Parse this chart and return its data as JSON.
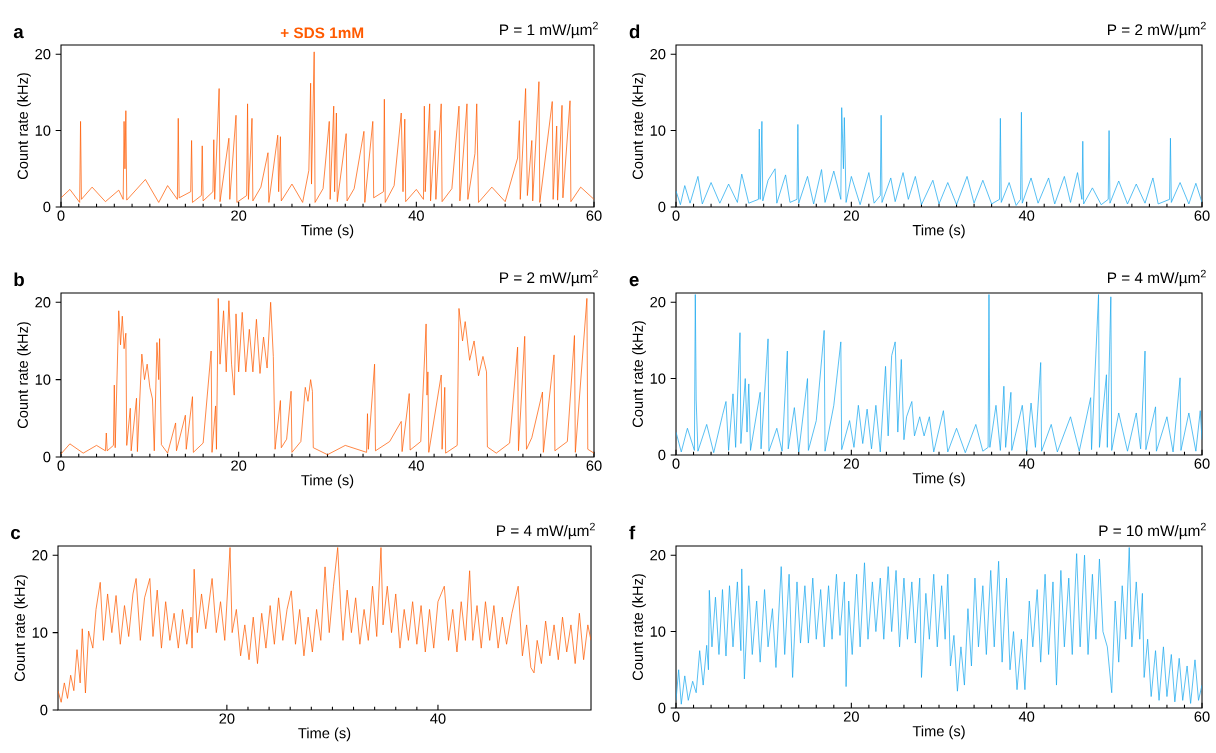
{
  "chart_data": [
    {
      "type": "line",
      "title": "+ SDS 1mM",
      "subtitle": "P = 1 mW/µm$^{2}$",
      "xlabel": "Time (s)",
      "ylabel": "Count rate (kHz)",
      "annotations": [
        "a"
      ],
      "color": "#ff5a00",
      "xlim": [
        0,
        60
      ],
      "ylim": [
        0,
        21.2
      ],
      "xticks": [
        0,
        20,
        40,
        60
      ],
      "yticks": [
        0,
        10,
        20
      ],
      "x": [
        0,
        1,
        2.1,
        2.2,
        2.3,
        3.5,
        5,
        6.5,
        7.0,
        7.1,
        7.2,
        7.3,
        7.4,
        9.5,
        11,
        12,
        13.1,
        13.2,
        13.3,
        14.6,
        14.7,
        14.8,
        15.8,
        15.9,
        16.0,
        17.1,
        17.2,
        17.3,
        17.8,
        17.9,
        18.9,
        19.0,
        19.7,
        19.8,
        20.9,
        21.0,
        21.1,
        21.5,
        21.6,
        22.5,
        23.3,
        23.4,
        24.4,
        24.5,
        24.7,
        24.8,
        26,
        27.2,
        27.9,
        28.1,
        28.2,
        28.5,
        28.6,
        29.5,
        30.2,
        30.3,
        30.7,
        30.8,
        31.0,
        31.1,
        32.1,
        32.2,
        33,
        34.1,
        34.2,
        35.1,
        35.2,
        36.3,
        36.4,
        36.5,
        37.5,
        38.3,
        38.5,
        38.7,
        38.8,
        40,
        40.8,
        40.9,
        41.0,
        41.5,
        41.6,
        42.1,
        42.2,
        42.8,
        42.9,
        44,
        44.8,
        44.9,
        45.7,
        45.8,
        46.6,
        46.8,
        47.0,
        48.5,
        50,
        51.4,
        51.6,
        51.7,
        52.3,
        52.5,
        53.0,
        53.1,
        53.8,
        53.9,
        55.3,
        55.4,
        55.8,
        55.9,
        56.4,
        56.5,
        57.3,
        57.4,
        58.5,
        60
      ],
      "values": [
        1.2,
        2.3,
        0.6,
        11.2,
        1.0,
        2.6,
        0.7,
        2.2,
        1.0,
        11.2,
        5,
        12.6,
        0.9,
        3.6,
        0.6,
        2.8,
        1.0,
        11.6,
        1.2,
        2.0,
        8.7,
        0.6,
        1.5,
        8.0,
        0.8,
        2.0,
        8.8,
        1.0,
        15.5,
        0.7,
        9.0,
        1.0,
        12.0,
        0.6,
        1.5,
        13.5,
        1.0,
        11.6,
        0.8,
        2.6,
        7.1,
        0.6,
        9.4,
        2.0,
        9.2,
        0.8,
        3.0,
        0.6,
        4.8,
        16.2,
        3,
        20.3,
        0.6,
        2.4,
        11.2,
        1.0,
        13.2,
        2.0,
        12.3,
        0.7,
        9.6,
        0.8,
        2.4,
        9.9,
        0.6,
        11.2,
        1.2,
        2.0,
        14.1,
        0.6,
        2.8,
        12.3,
        2.0,
        11.5,
        0.7,
        2.3,
        1.0,
        13.2,
        2,
        13.5,
        0.8,
        10.0,
        1.0,
        13.5,
        0.7,
        2.4,
        13.2,
        0.8,
        13.5,
        1.0,
        7.0,
        13.5,
        0.6,
        2.6,
        0.7,
        6.4,
        11.3,
        1.0,
        15.5,
        1.5,
        8.7,
        0.8,
        16.4,
        0.6,
        13.8,
        1.0,
        10.6,
        0.9,
        13.3,
        1.2,
        13.9,
        0.7,
        2.6,
        1.0
      ]
    },
    {
      "type": "line",
      "subtitle": "P = 2 mW/µm$^{2}$",
      "xlabel": "Time (s)",
      "ylabel": "Count rate (kHz)",
      "annotations": [
        "b"
      ],
      "color": "#ff5a00",
      "xlim": [
        0,
        60
      ],
      "ylim": [
        0,
        21.2
      ],
      "xticks": [
        0,
        20,
        40,
        60
      ],
      "yticks": [
        0,
        10,
        20
      ],
      "x": [
        0,
        1,
        2.5,
        4,
        5.0,
        5.1,
        5.2,
        5.9,
        6.0,
        6.1,
        6.5,
        6.7,
        6.9,
        7.1,
        7.3,
        7.4,
        7.8,
        7.9,
        8.5,
        8.6,
        9.1,
        9.4,
        9.7,
        10.0,
        10.3,
        10.5,
        10.8,
        11.0,
        11.1,
        11.3,
        12,
        12.9,
        13,
        14,
        14.1,
        14.8,
        14.9,
        16,
        16.9,
        17.0,
        17.4,
        17.5,
        17.7,
        17.9,
        18.3,
        18.6,
        18.9,
        19.2,
        19.5,
        19.7,
        20,
        20.4,
        20.8,
        21.2,
        21.6,
        22,
        22.4,
        22.8,
        23.2,
        23.6,
        23.9,
        24.1,
        24.7,
        24.8,
        25.4,
        25.9,
        26.0,
        27.0,
        27.5,
        27.8,
        28.1,
        28.3,
        28.4,
        30,
        32,
        34.4,
        34.5,
        34.6,
        35.3,
        35.4,
        37,
        38.3,
        38.4,
        39.2,
        39.3,
        40.5,
        41.1,
        41.2,
        41.3,
        41.4,
        42.8,
        42.9,
        43.2,
        43.3,
        44.6,
        44.8,
        45.2,
        45.5,
        46,
        46.5,
        47,
        47.5,
        47.9,
        48.0,
        49,
        50.5,
        51.4,
        51.5,
        52.2,
        52.4,
        53,
        54.2,
        54.3,
        55.5,
        55.6,
        57,
        57.8,
        57.9,
        59.2,
        59.3,
        60
      ],
      "values": [
        0.4,
        1.7,
        0.5,
        1.5,
        0.8,
        3.1,
        0.8,
        1.5,
        9.3,
        1.2,
        18.9,
        14.5,
        18.2,
        14,
        16,
        1.5,
        6.3,
        0.8,
        7.6,
        0.7,
        13.3,
        10,
        12,
        9,
        7.5,
        0.8,
        14.8,
        10,
        15.3,
        1.6,
        0.5,
        4.4,
        0.8,
        5.4,
        1.0,
        7.8,
        0.6,
        1.8,
        13.7,
        0.6,
        6.6,
        1.0,
        20.5,
        12,
        18.9,
        11,
        20.2,
        12,
        8,
        18.5,
        11,
        18.7,
        11,
        16.5,
        11,
        17.8,
        10.8,
        15.5,
        11.5,
        20.0,
        13,
        1.0,
        7.3,
        1.2,
        2.3,
        8.5,
        0.6,
        2.0,
        9.0,
        7.2,
        10.0,
        8.5,
        1.2,
        0.3,
        1.5,
        0.6,
        5.6,
        1.0,
        12.0,
        0.8,
        2.0,
        4.6,
        0.7,
        8.2,
        0.9,
        2.0,
        17.2,
        8,
        11.0,
        0.6,
        10.6,
        1.0,
        9.0,
        0.5,
        1.5,
        19.2,
        15,
        17.5,
        12.5,
        15,
        10.5,
        13,
        11,
        1.3,
        0.5,
        1.8,
        14.2,
        0.8,
        15.6,
        1.0,
        2.5,
        8.4,
        0.6,
        13.2,
        0.8,
        2.0,
        15.7,
        0.6,
        20.5,
        1.0,
        0.5
      ]
    },
    {
      "type": "line",
      "subtitle": "P = 4 mW/µm$^{2}$",
      "xlabel": "Time (s)",
      "ylabel": "Count rate (kHz)",
      "annotations": [
        "c"
      ],
      "color": "#ff5a00",
      "xlim": [
        4,
        54.5
      ],
      "ylim": [
        0,
        21.2
      ],
      "xticks": [
        20,
        40
      ],
      "yticks": [
        0,
        10,
        20
      ],
      "x": [
        4,
        4.3,
        4.6,
        4.9,
        5.2,
        5.5,
        5.8,
        6.1,
        6.3,
        6.6,
        6.9,
        7.3,
        7.6,
        8.0,
        8.3,
        8.7,
        9.1,
        9.5,
        9.9,
        10.3,
        10.7,
        11.1,
        11.4,
        11.8,
        12.2,
        12.7,
        13,
        13.4,
        13.8,
        14.2,
        14.6,
        15,
        15.4,
        15.8,
        16.2,
        16.6,
        16.7,
        16.9,
        17.2,
        17.6,
        18,
        18.6,
        19,
        19.4,
        19.8,
        20.3,
        20.5,
        20.9,
        21.3,
        21.7,
        22.1,
        22.5,
        22.9,
        23.3,
        23.7,
        24.1,
        24.5,
        24.9,
        25.3,
        25.7,
        26.1,
        26.5,
        26.9,
        27.3,
        27.7,
        28.1,
        28.5,
        28.9,
        29.3,
        29.7,
        30.1,
        30.5,
        30.8,
        31,
        31.4,
        31.8,
        32.2,
        32.6,
        33,
        33.4,
        33.8,
        34.2,
        34.6,
        34.8,
        35.2,
        35.6,
        36,
        36.4,
        36.8,
        37.2,
        37.6,
        38,
        38.4,
        38.8,
        39.2,
        39.6,
        40,
        40.6,
        41,
        41.4,
        41.8,
        42.2,
        42.6,
        43.0,
        43.3,
        43.7,
        44.1,
        44.5,
        44.9,
        45.3,
        45.7,
        46.1,
        46.5,
        47,
        47.6,
        48,
        48.4,
        48.8,
        49.1,
        49.4,
        49.8,
        50.2,
        50.6,
        51,
        51.4,
        51.8,
        52.2,
        52.6,
        53,
        53.4,
        53.8,
        54.2,
        54.5
      ],
      "values": [
        2.5,
        1.0,
        3.5,
        1.5,
        4.5,
        2.5,
        7.8,
        3.5,
        10.5,
        2.2,
        10.2,
        8,
        13,
        16.5,
        9,
        15,
        10,
        14.8,
        8.5,
        13.5,
        9.5,
        15,
        17,
        9,
        14.5,
        17,
        9.5,
        15.5,
        8,
        14,
        9,
        12.5,
        8,
        13,
        8.5,
        12,
        8,
        18.2,
        10,
        15,
        10.5,
        17,
        10,
        14,
        9,
        21,
        10,
        13,
        7,
        11,
        6.5,
        12,
        6,
        12.5,
        8,
        13.5,
        8.5,
        14.5,
        9,
        13,
        15.4,
        8.5,
        13,
        7,
        12,
        7.5,
        13,
        9,
        18.5,
        10,
        16,
        21,
        13,
        9,
        15.5,
        10,
        14.5,
        8.5,
        13,
        9,
        16,
        9.5,
        21,
        11,
        16,
        10,
        15,
        8,
        13,
        9,
        14,
        8.5,
        13.5,
        7.5,
        13,
        8,
        14,
        16,
        9,
        13,
        7.5,
        14,
        9,
        18,
        9,
        13.5,
        8,
        14,
        9,
        13.5,
        8,
        12,
        8.5,
        12.5,
        16,
        7,
        11,
        5.5,
        4.8,
        9,
        6,
        11.5,
        7,
        11,
        6.5,
        12,
        7.5,
        11,
        6,
        12.5,
        6.5,
        11,
        9
      ]
    },
    {
      "type": "line",
      "subtitle": "P = 2 mW/µm$^{2}$",
      "xlabel": "Time (s)",
      "ylabel": "Count rate (kHz)",
      "annotations": [
        "d"
      ],
      "color": "#1ca8ee",
      "xlim": [
        0,
        60
      ],
      "ylim": [
        0,
        21.2
      ],
      "xticks": [
        0,
        20,
        40,
        60
      ],
      "yticks": [
        0,
        10,
        20
      ],
      "x": [
        0,
        0.5,
        1,
        1.6,
        2.5,
        3,
        4,
        5,
        6,
        7,
        7.5,
        8.3,
        9.4,
        9.5,
        9.6,
        9.8,
        9.9,
        10.5,
        11.3,
        11.5,
        12.5,
        13,
        13.8,
        13.9,
        14.0,
        15,
        15.7,
        16.6,
        17,
        18,
        18.8,
        18.9,
        19.1,
        19.2,
        19.4,
        20,
        21,
        22,
        22.6,
        23.3,
        23.4,
        23.5,
        24.5,
        25,
        25.9,
        26.5,
        27.3,
        28,
        29.3,
        30,
        31,
        32,
        33.2,
        34,
        35,
        36,
        36.9,
        37.0,
        37.1,
        38,
        38.8,
        39.3,
        39.4,
        39.5,
        40.5,
        41.3,
        42.5,
        43.2,
        44.3,
        45,
        45.8,
        46.3,
        46.4,
        46.5,
        47.5,
        48.5,
        49.3,
        49.4,
        49.5,
        50.5,
        51.5,
        52.5,
        53.5,
        54.4,
        55,
        56.3,
        56.4,
        56.5,
        57.5,
        58.5,
        59.3,
        60
      ],
      "values": [
        2.1,
        0.3,
        2.8,
        0.5,
        4.0,
        0.4,
        3.2,
        0.5,
        3.0,
        0.6,
        4.3,
        0.5,
        1.0,
        10.2,
        1.0,
        11.2,
        0.8,
        3.5,
        5.0,
        0.5,
        4.2,
        0.6,
        1.0,
        10.8,
        0.5,
        4.0,
        0.4,
        4.9,
        0.6,
        4.7,
        1.0,
        13.0,
        5,
        11.7,
        0.6,
        4.0,
        0.3,
        4.5,
        0.5,
        1.5,
        12.0,
        0.6,
        3.8,
        0.7,
        4.5,
        1.0,
        4.0,
        0.3,
        3.5,
        0.4,
        3.2,
        0.3,
        4.0,
        0.5,
        3.5,
        0.4,
        1.0,
        11.6,
        0.6,
        3.2,
        0.2,
        1.0,
        12.4,
        0.5,
        3.8,
        0.5,
        3.8,
        0.4,
        4.0,
        0.6,
        4.5,
        1.0,
        8.6,
        0.4,
        2.5,
        0.3,
        1.0,
        10.0,
        0.5,
        3.4,
        0.4,
        3.0,
        0.5,
        3.8,
        0.4,
        1.0,
        9.0,
        0.6,
        3.2,
        0.4,
        3.1,
        0.6
      ]
    },
    {
      "type": "line",
      "subtitle": "P = 4 mW/µm$^{2}$",
      "xlabel": "Time (s)",
      "ylabel": "Count rate (kHz)",
      "annotations": [
        "e"
      ],
      "color": "#1ca8ee",
      "xlim": [
        0,
        60
      ],
      "ylim": [
        0,
        21.2
      ],
      "xticks": [
        0,
        20,
        40,
        60
      ],
      "yticks": [
        0,
        10,
        20
      ],
      "x": [
        0,
        0.6,
        1.3,
        2.1,
        2.2,
        2.3,
        2.5,
        3.5,
        4.3,
        5.3,
        5.7,
        6.0,
        6.5,
        6.8,
        7.3,
        7.4,
        7.9,
        8.1,
        8.3,
        8.5,
        9.6,
        9.7,
        10.5,
        10.6,
        11.5,
        12.1,
        12.7,
        12.8,
        13.5,
        14,
        15.0,
        15.1,
        16,
        16.9,
        17.0,
        18,
        18.8,
        18.9,
        19.8,
        20.3,
        20.8,
        21.3,
        21.8,
        22.3,
        22.8,
        23.3,
        23.9,
        24.2,
        24.6,
        25.0,
        25.3,
        25.7,
        26.0,
        26.3,
        26.9,
        27.2,
        27.8,
        28.3,
        28.9,
        29.4,
        30.5,
        31,
        32,
        33,
        34.2,
        35,
        35.6,
        35.7,
        35.8,
        36.5,
        37,
        37.4,
        37.6,
        38.2,
        38.3,
        39.5,
        40,
        40.5,
        41.0,
        41.6,
        41.7,
        42.8,
        43.5,
        45,
        46,
        47.3,
        47.4,
        48.2,
        48.3,
        49.1,
        49.2,
        49.6,
        49.7,
        50.5,
        51.5,
        52.5,
        53.0,
        53.5,
        53.6,
        54.7,
        54.8,
        56,
        56.7,
        57.5,
        57.6,
        58.5,
        59.3,
        59.8,
        60
      ],
      "values": [
        3.0,
        0.4,
        3.5,
        0.6,
        21,
        7.2,
        0.5,
        4.0,
        0.3,
        5.2,
        7.0,
        0.6,
        8.0,
        1.0,
        16,
        1.5,
        10,
        3,
        9.3,
        0.6,
        8.2,
        0.8,
        15.2,
        0.5,
        3.5,
        0.5,
        13.6,
        0.8,
        6.2,
        0.4,
        10.0,
        0.6,
        4.5,
        16.3,
        0.5,
        6.5,
        14.8,
        0.7,
        4.5,
        1.0,
        6.5,
        1.5,
        6.0,
        0.8,
        6.5,
        0.4,
        11.6,
        2.5,
        13,
        14.8,
        3,
        12.5,
        2.0,
        5.0,
        7.0,
        2.5,
        5.0,
        2.5,
        5.0,
        0.4,
        5.8,
        0.4,
        3.5,
        0.3,
        4.0,
        0.5,
        1.0,
        21,
        1.0,
        6.5,
        0.6,
        9.0,
        1.0,
        8.2,
        0.6,
        6.5,
        0.5,
        6.8,
        1.0,
        12.1,
        0.5,
        4.0,
        0.4,
        5.0,
        0.5,
        7.5,
        0.7,
        21,
        1.0,
        10.5,
        1.0,
        20.7,
        0.6,
        5.5,
        0.5,
        5.5,
        0.8,
        13.6,
        0.7,
        6.3,
        0.5,
        5.0,
        0.4,
        10.1,
        0.6,
        5.5,
        0.5,
        5.8,
        2.0
      ]
    },
    {
      "type": "line",
      "subtitle": "P = 10 mW/µm$^{2}$",
      "xlabel": "Time (s)",
      "ylabel": "Count rate (kHz)",
      "annotations": [
        "f"
      ],
      "color": "#1ca8ee",
      "xlim": [
        0,
        60
      ],
      "ylim": [
        0,
        21.2
      ],
      "xticks": [
        0,
        20,
        40,
        60
      ],
      "yticks": [
        0,
        10,
        20
      ],
      "x": [
        0,
        0.3,
        0.6,
        1,
        1.4,
        1.9,
        2.3,
        2.7,
        3.1,
        3.5,
        3.7,
        3.8,
        4.1,
        4.5,
        4.9,
        5.3,
        5.7,
        6.1,
        6.5,
        7.0,
        7.4,
        7.5,
        7.8,
        8.3,
        8.7,
        9.2,
        9.6,
        10.1,
        10.5,
        11,
        11.4,
        12,
        12.4,
        12.9,
        13.3,
        13.8,
        14.2,
        14.7,
        15.1,
        15.6,
        16,
        16.5,
        16.9,
        17.4,
        17.8,
        18.3,
        18.7,
        19.2,
        19.4,
        19.7,
        20.1,
        20.6,
        21,
        21.5,
        21.9,
        22.4,
        22.8,
        23.3,
        23.7,
        24.2,
        24.6,
        25.1,
        25.5,
        26,
        26.4,
        26.9,
        27.3,
        27.8,
        28.0,
        28.5,
        28.9,
        29.4,
        29.8,
        30.3,
        30.7,
        31.0,
        31.3,
        31.7,
        32.1,
        32.5,
        32.9,
        33.3,
        33.7,
        34.1,
        34.5,
        35,
        35.4,
        35.9,
        36.3,
        36.8,
        37.2,
        37.7,
        38.1,
        38.5,
        38.9,
        39.4,
        39.8,
        40.3,
        40.7,
        41.2,
        41.6,
        42.1,
        42.5,
        43,
        43.4,
        43.9,
        44.3,
        44.8,
        45.2,
        45.7,
        46.1,
        46.6,
        47,
        47.5,
        47.9,
        48.3,
        48.7,
        49.2,
        49.7,
        50.1,
        50.5,
        50.9,
        51.3,
        51.7,
        52,
        52.5,
        52.9,
        53.2,
        53.4,
        53.8,
        54.2,
        54.7,
        55.1,
        55.6,
        56,
        56.5,
        56.9,
        57.4,
        57.8,
        58.3,
        58.7,
        59.2,
        59.6,
        60
      ],
      "values": [
        1,
        5,
        0.5,
        4.2,
        1.0,
        3.5,
        2,
        7.5,
        3,
        8.2,
        5,
        15.4,
        8,
        14.5,
        7,
        15.5,
        6.8,
        16,
        8,
        16.5,
        7.5,
        18.2,
        3.8,
        16,
        7,
        14,
        6,
        15.5,
        8,
        13,
        5.3,
        18.5,
        7,
        17.5,
        4,
        16.5,
        8.5,
        16,
        8.5,
        17,
        9,
        15.5,
        8,
        16,
        9,
        17.5,
        9.5,
        16.5,
        2.8,
        14,
        7,
        17.5,
        8,
        19,
        9,
        16.5,
        10,
        17,
        9,
        18.5,
        10,
        18,
        8,
        17,
        9,
        16.5,
        8.5,
        17,
        4,
        15,
        9,
        17.5,
        8,
        16,
        9,
        17.5,
        5.5,
        9.5,
        2.2,
        8,
        3,
        13,
        5.5,
        17,
        8,
        16,
        7,
        18,
        8,
        19.2,
        6,
        17,
        5,
        10,
        2.4,
        9,
        2.4,
        14,
        8,
        15.5,
        6,
        17.5,
        7,
        16.5,
        3,
        18,
        8,
        17,
        7,
        20.2,
        8,
        20,
        7,
        17.5,
        9,
        19.5,
        10,
        8,
        2,
        14,
        6,
        16,
        9,
        21,
        8,
        16.5,
        9,
        15,
        4,
        9,
        1.5,
        7.5,
        1,
        8,
        1.5,
        7,
        0.8,
        6.5,
        1,
        5.5,
        0.6,
        6.3,
        1,
        3
      ]
    }
  ]
}
